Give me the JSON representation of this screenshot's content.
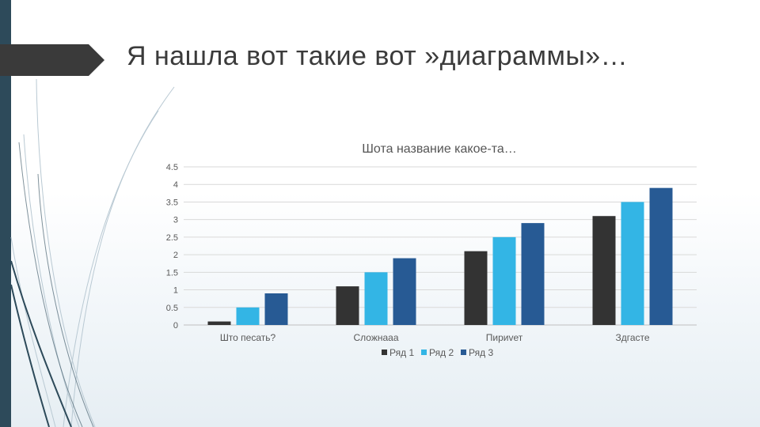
{
  "slide": {
    "title": "Я нашла вот такие вот »диаграммы»…"
  },
  "colors": {
    "band": "#2d4a5a",
    "tab": "#3a3a3a",
    "grid": "#d9d9d9",
    "axis": "#bfbfbf"
  },
  "chart_data": {
    "type": "bar",
    "title": "Шота название какое-та…",
    "categories": [
      "Што песать?",
      "Сложнааа",
      "Пириvет",
      "Здгасте"
    ],
    "series": [
      {
        "name": "Ряд 1",
        "color": "#333333",
        "values": [
          0.1,
          1.1,
          2.1,
          3.1
        ]
      },
      {
        "name": "Ряд 2",
        "color": "#33b5e5",
        "values": [
          0.5,
          1.5,
          2.5,
          3.5
        ]
      },
      {
        "name": "Ряд 3",
        "color": "#275a94",
        "values": [
          0.9,
          1.9,
          2.9,
          3.9
        ]
      }
    ],
    "y_ticks": [
      "0",
      "0.5",
      "1",
      "1.5",
      "2",
      "2.5",
      "3",
      "3.5",
      "4",
      "4.5"
    ],
    "ylim": [
      0,
      4.5
    ],
    "grid": true,
    "legend_position": "bottom",
    "xlabel": "",
    "ylabel": ""
  }
}
